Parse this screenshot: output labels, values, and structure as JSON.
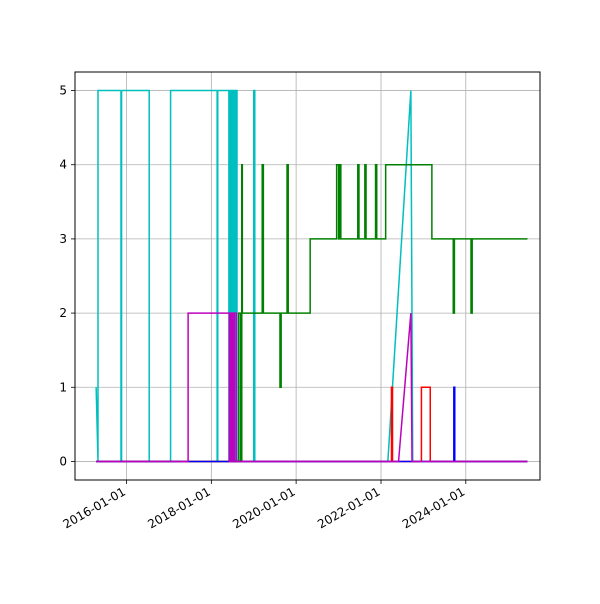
{
  "chart_data": {
    "type": "line",
    "title": "",
    "xlabel": "",
    "ylabel": "",
    "x_axis_type": "date",
    "xlim": [
      "2014-10-15",
      "2025-10-01"
    ],
    "ylim": [
      -0.25,
      5.25
    ],
    "x_ticks": [
      "2016-01-01",
      "2018-01-01",
      "2020-01-01",
      "2022-01-01",
      "2024-01-01"
    ],
    "y_ticks": [
      0,
      1,
      2,
      3,
      4,
      5
    ],
    "grid": true,
    "legend": "none",
    "series": [
      {
        "color": "#00bfbf",
        "points": [
          [
            "2015-04-15",
            1
          ],
          [
            "2015-05-01",
            0
          ],
          [
            "2015-05-01",
            5
          ],
          [
            "2015-11-15",
            5
          ],
          [
            "2015-11-15",
            0
          ],
          [
            "2015-11-20",
            0
          ],
          [
            "2015-11-20",
            5
          ],
          [
            "2016-07-15",
            5
          ],
          [
            "2016-07-15",
            0
          ],
          [
            "2017-01-15",
            0
          ],
          [
            "2017-01-15",
            5
          ],
          [
            "2018-02-20",
            5
          ],
          [
            "2018-02-20",
            0
          ],
          [
            "2018-02-25",
            0
          ],
          [
            "2018-02-25",
            5
          ],
          [
            "2018-06-01",
            5
          ],
          [
            "2018-06-01",
            0
          ],
          [
            "2018-06-12",
            0
          ],
          [
            "2018-06-12",
            5
          ],
          [
            "2018-06-20",
            5
          ],
          [
            "2018-06-20",
            0
          ],
          [
            "2018-06-28",
            0
          ],
          [
            "2018-06-28",
            5
          ],
          [
            "2018-07-05",
            5
          ],
          [
            "2018-07-05",
            0
          ],
          [
            "2018-07-15",
            0
          ],
          [
            "2018-07-15",
            5
          ],
          [
            "2018-07-25",
            5
          ],
          [
            "2018-07-25",
            0
          ],
          [
            "2018-08-01",
            0
          ],
          [
            "2018-08-01",
            5
          ],
          [
            "2018-08-10",
            5
          ],
          [
            "2018-08-10",
            0
          ],
          [
            "2019-01-01",
            0
          ],
          [
            "2019-01-01",
            5
          ],
          [
            "2019-01-10",
            5
          ],
          [
            "2019-01-10",
            0
          ],
          [
            "2022-03-01",
            0
          ],
          [
            "2022-09-15",
            5
          ],
          [
            "2022-10-01",
            0
          ],
          [
            "2025-06-15",
            0
          ]
        ]
      },
      {
        "color": "#008000",
        "points": [
          [
            "2015-04-15",
            0
          ],
          [
            "2018-08-25",
            0
          ],
          [
            "2018-08-25",
            2
          ],
          [
            "2018-09-10",
            2
          ],
          [
            "2018-09-10",
            0
          ],
          [
            "2018-09-20",
            0
          ],
          [
            "2018-09-20",
            4
          ],
          [
            "2018-09-25",
            4
          ],
          [
            "2018-09-25",
            2
          ],
          [
            "2019-03-15",
            2
          ],
          [
            "2019-03-15",
            4
          ],
          [
            "2019-03-25",
            4
          ],
          [
            "2019-03-25",
            2
          ],
          [
            "2019-08-15",
            2
          ],
          [
            "2019-08-15",
            1
          ],
          [
            "2019-08-25",
            1
          ],
          [
            "2019-08-25",
            2
          ],
          [
            "2019-10-15",
            2
          ],
          [
            "2019-10-15",
            4
          ],
          [
            "2019-10-25",
            4
          ],
          [
            "2019-10-25",
            2
          ],
          [
            "2020-05-01",
            2
          ],
          [
            "2020-05-01",
            3
          ],
          [
            "2020-12-15",
            3
          ],
          [
            "2020-12-15",
            4
          ],
          [
            "2021-01-01",
            4
          ],
          [
            "2021-01-01",
            3
          ],
          [
            "2021-01-10",
            3
          ],
          [
            "2021-01-10",
            4
          ],
          [
            "2021-01-20",
            4
          ],
          [
            "2021-01-20",
            3
          ],
          [
            "2021-06-15",
            3
          ],
          [
            "2021-06-15",
            4
          ],
          [
            "2021-06-25",
            4
          ],
          [
            "2021-06-25",
            3
          ],
          [
            "2021-08-15",
            3
          ],
          [
            "2021-08-15",
            4
          ],
          [
            "2021-08-25",
            4
          ],
          [
            "2021-08-25",
            3
          ],
          [
            "2021-11-15",
            3
          ],
          [
            "2021-11-15",
            4
          ],
          [
            "2021-11-25",
            4
          ],
          [
            "2021-11-25",
            3
          ],
          [
            "2022-02-10",
            3
          ],
          [
            "2022-02-10",
            4
          ],
          [
            "2023-03-15",
            4
          ],
          [
            "2023-03-15",
            3
          ],
          [
            "2023-09-15",
            3
          ],
          [
            "2023-09-15",
            2
          ],
          [
            "2023-09-25",
            2
          ],
          [
            "2023-09-25",
            3
          ],
          [
            "2024-02-15",
            3
          ],
          [
            "2024-02-15",
            2
          ],
          [
            "2024-02-25",
            2
          ],
          [
            "2024-02-25",
            3
          ],
          [
            "2025-06-15",
            3
          ]
        ]
      },
      {
        "color": "#ff0000",
        "points": [
          [
            "2015-04-15",
            0
          ],
          [
            "2022-04-01",
            0
          ],
          [
            "2022-04-01",
            1
          ],
          [
            "2022-04-10",
            1
          ],
          [
            "2022-04-10",
            0
          ],
          [
            "2022-12-15",
            0
          ],
          [
            "2022-12-15",
            1
          ],
          [
            "2023-03-01",
            1
          ],
          [
            "2023-03-01",
            0
          ],
          [
            "2025-06-15",
            0
          ]
        ]
      },
      {
        "color": "#0000ff",
        "points": [
          [
            "2015-04-15",
            0
          ],
          [
            "2023-09-20",
            0
          ],
          [
            "2023-09-20",
            1
          ],
          [
            "2023-09-28",
            1
          ],
          [
            "2023-09-28",
            0
          ],
          [
            "2025-06-15",
            0
          ]
        ]
      },
      {
        "color": "#bf00bf",
        "points": [
          [
            "2015-04-15",
            0
          ],
          [
            "2017-06-15",
            0
          ],
          [
            "2017-06-15",
            2
          ],
          [
            "2018-06-05",
            2
          ],
          [
            "2018-06-05",
            0
          ],
          [
            "2018-06-15",
            0
          ],
          [
            "2018-06-15",
            2
          ],
          [
            "2018-06-25",
            2
          ],
          [
            "2018-06-25",
            0
          ],
          [
            "2018-07-05",
            0
          ],
          [
            "2018-07-05",
            2
          ],
          [
            "2018-07-12",
            2
          ],
          [
            "2018-07-12",
            0
          ],
          [
            "2018-07-20",
            0
          ],
          [
            "2018-07-20",
            2
          ],
          [
            "2018-08-05",
            2
          ],
          [
            "2018-08-05",
            0
          ],
          [
            "2022-06-01",
            0
          ],
          [
            "2022-09-15",
            2
          ],
          [
            "2022-09-25",
            0
          ],
          [
            "2025-06-15",
            0
          ]
        ]
      }
    ]
  }
}
